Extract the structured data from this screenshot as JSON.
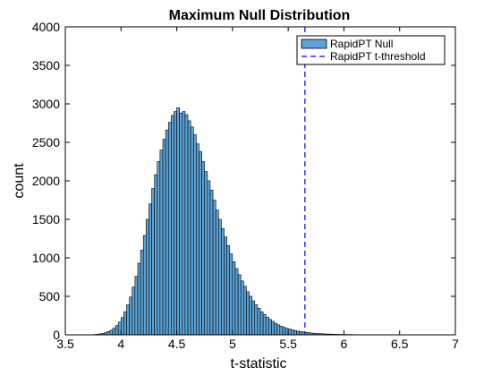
{
  "chart_data": {
    "type": "bar",
    "title": "Maximum Null Distribution",
    "xlabel": "t-statistic",
    "ylabel": "count",
    "xlim": [
      3.5,
      7
    ],
    "ylim": [
      0,
      4000
    ],
    "xticks": [
      "3.5",
      "4",
      "4.5",
      "5",
      "5.5",
      "6",
      "6.5",
      "7"
    ],
    "yticks": [
      "0",
      "500",
      "1000",
      "1500",
      "2000",
      "2500",
      "3000",
      "3500",
      "4000"
    ],
    "bin_start": 3.7,
    "bin_width": 0.025,
    "series": [
      {
        "name": "RapidPT Null",
        "color": "#5ba3d6",
        "values": [
          1,
          2,
          4,
          7,
          12,
          18,
          28,
          42,
          60,
          85,
          120,
          165,
          225,
          300,
          390,
          490,
          620,
          760,
          930,
          1100,
          1290,
          1500,
          1700,
          1900,
          2080,
          2250,
          2400,
          2540,
          2660,
          2760,
          2850,
          2900,
          2950,
          2880,
          2900,
          2860,
          2780,
          2700,
          2600,
          2480,
          2380,
          2250,
          2120,
          2000,
          1880,
          1750,
          1620,
          1500,
          1380,
          1270,
          1160,
          1050,
          950,
          860,
          780,
          700,
          630,
          560,
          500,
          440,
          390,
          345,
          300,
          265,
          230,
          200,
          175,
          150,
          130,
          112,
          98,
          85,
          74,
          64,
          56,
          48,
          42,
          36,
          31,
          27,
          23,
          20,
          17,
          15,
          13,
          11,
          10,
          9,
          8,
          7,
          6,
          5,
          5,
          4,
          4,
          3,
          3,
          2,
          2,
          2,
          2,
          1,
          1,
          1,
          1,
          1,
          1,
          1,
          1,
          1,
          1,
          1,
          1,
          1,
          1,
          1
        ]
      }
    ],
    "threshold": {
      "name": "RapidPT t-threshold",
      "x": 5.65,
      "color": "#0000ff",
      "style": "dashed"
    },
    "legend_position": "top-right",
    "grid": false
  }
}
